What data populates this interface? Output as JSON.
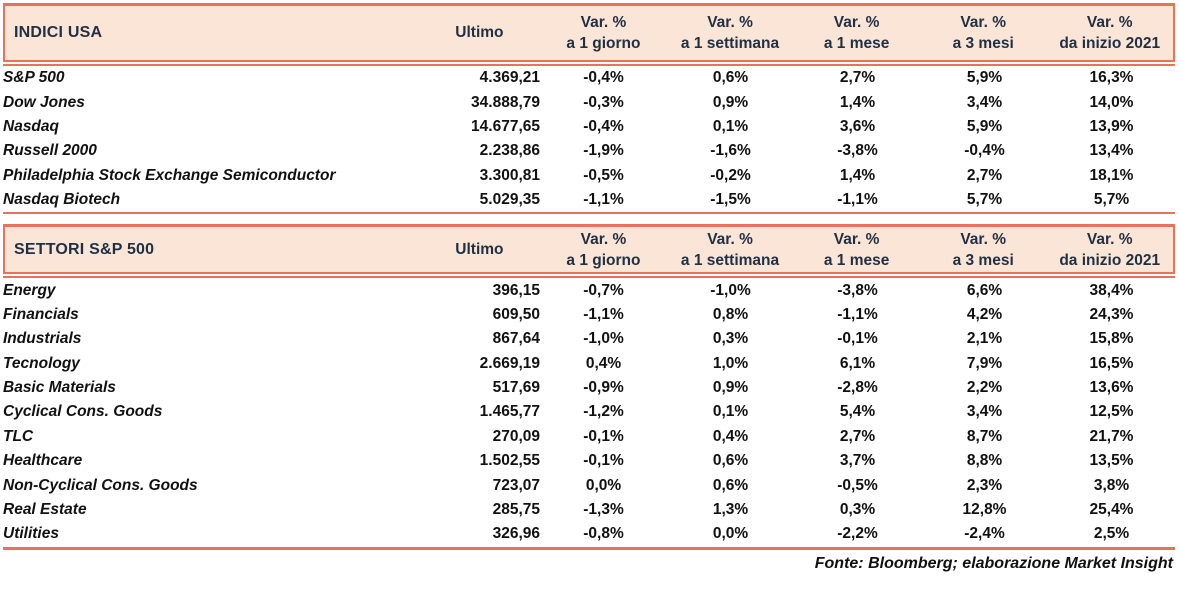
{
  "colors": {
    "accent_border": "#E8735A",
    "header_background": "#FBE5D6",
    "header_text": "#1F3044",
    "body_text": "#111111"
  },
  "footer": "Fonte: Bloomberg; elaborazione Market Insight",
  "chart_data": [
    {
      "type": "table",
      "title": "INDICI USA",
      "value_column": "Ultimo",
      "var_header": "Var. %",
      "periods": [
        "a 1 giorno",
        "a 1 settimana",
        "a 1 mese",
        "a 3 mesi",
        "da inizio 2021"
      ],
      "rows": [
        {
          "name": "S&P 500",
          "ultimo": "4.369,21",
          "vars": [
            "-0,4%",
            "0,6%",
            "2,7%",
            "5,9%",
            "16,3%"
          ]
        },
        {
          "name": "Dow Jones",
          "ultimo": "34.888,79",
          "vars": [
            "-0,3%",
            "0,9%",
            "1,4%",
            "3,4%",
            "14,0%"
          ]
        },
        {
          "name": "Nasdaq",
          "ultimo": "14.677,65",
          "vars": [
            "-0,4%",
            "0,1%",
            "3,6%",
            "5,9%",
            "13,9%"
          ]
        },
        {
          "name": "Russell 2000",
          "ultimo": "2.238,86",
          "vars": [
            "-1,9%",
            "-1,6%",
            "-3,8%",
            "-0,4%",
            "13,4%"
          ]
        },
        {
          "name": "Philadelphia Stock Exchange Semiconductor",
          "ultimo": "3.300,81",
          "vars": [
            "-0,5%",
            "-0,2%",
            "1,4%",
            "2,7%",
            "18,1%"
          ]
        },
        {
          "name": "Nasdaq Biotech",
          "ultimo": "5.029,35",
          "vars": [
            "-1,1%",
            "-1,5%",
            "-1,1%",
            "5,7%",
            "5,7%"
          ]
        }
      ]
    },
    {
      "type": "table",
      "title": "SETTORI S&P 500",
      "value_column": "Ultimo",
      "var_header": "Var. %",
      "periods": [
        "a 1 giorno",
        "a 1 settimana",
        "a 1 mese",
        "a 3 mesi",
        "da inizio 2021"
      ],
      "rows": [
        {
          "name": "Energy",
          "ultimo": "396,15",
          "vars": [
            "-0,7%",
            "-1,0%",
            "-3,8%",
            "6,6%",
            "38,4%"
          ]
        },
        {
          "name": "Financials",
          "ultimo": "609,50",
          "vars": [
            "-1,1%",
            "0,8%",
            "-1,1%",
            "4,2%",
            "24,3%"
          ]
        },
        {
          "name": "Industrials",
          "ultimo": "867,64",
          "vars": [
            "-1,0%",
            "0,3%",
            "-0,1%",
            "2,1%",
            "15,8%"
          ]
        },
        {
          "name": "Tecnology",
          "ultimo": "2.669,19",
          "vars": [
            "0,4%",
            "1,0%",
            "6,1%",
            "7,9%",
            "16,5%"
          ]
        },
        {
          "name": "Basic Materials",
          "ultimo": "517,69",
          "vars": [
            "-0,9%",
            "0,9%",
            "-2,8%",
            "2,2%",
            "13,6%"
          ]
        },
        {
          "name": "Cyclical Cons. Goods",
          "ultimo": "1.465,77",
          "vars": [
            "-1,2%",
            "0,1%",
            "5,4%",
            "3,4%",
            "12,5%"
          ]
        },
        {
          "name": "TLC",
          "ultimo": "270,09",
          "vars": [
            "-0,1%",
            "0,4%",
            "2,7%",
            "8,7%",
            "21,7%"
          ]
        },
        {
          "name": "Healthcare",
          "ultimo": "1.502,55",
          "vars": [
            "-0,1%",
            "0,6%",
            "3,7%",
            "8,8%",
            "13,5%"
          ]
        },
        {
          "name": "Non-Cyclical Cons. Goods",
          "ultimo": "723,07",
          "vars": [
            "0,0%",
            "0,6%",
            "-0,5%",
            "2,3%",
            "3,8%"
          ]
        },
        {
          "name": "Real Estate",
          "ultimo": "285,75",
          "vars": [
            "-1,3%",
            "1,3%",
            "0,3%",
            "12,8%",
            "25,4%"
          ]
        },
        {
          "name": "Utilities",
          "ultimo": "326,96",
          "vars": [
            "-0,8%",
            "0,0%",
            "-2,2%",
            "-2,4%",
            "2,5%"
          ]
        }
      ]
    }
  ]
}
